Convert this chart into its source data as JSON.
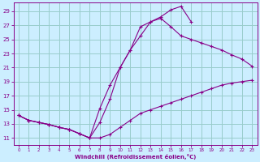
{
  "bg_color": "#cceeff",
  "grid_color": "#99cccc",
  "line_color": "#880088",
  "marker": "+",
  "xlabel": "Windchill (Refroidissement éolien,°C)",
  "ylabel_ticks": [
    11,
    13,
    15,
    17,
    19,
    21,
    23,
    25,
    27,
    29
  ],
  "xlabel_ticks": [
    0,
    1,
    2,
    3,
    4,
    5,
    6,
    7,
    8,
    9,
    10,
    11,
    12,
    13,
    14,
    15,
    16,
    17,
    18,
    19,
    20,
    21,
    22,
    23
  ],
  "xlim": [
    -0.5,
    23.5
  ],
  "ylim": [
    10.0,
    30.2
  ],
  "series1_x": [
    0,
    1,
    2,
    3,
    4,
    5,
    6,
    7,
    8,
    9,
    10,
    11,
    12,
    13,
    14,
    15,
    16,
    17,
    18,
    19,
    20,
    21,
    22,
    23
  ],
  "series1_y": [
    14.2,
    13.5,
    13.2,
    12.9,
    12.5,
    12.2,
    11.6,
    11.0,
    11.0,
    11.5,
    12.5,
    13.5,
    14.5,
    15.0,
    15.5,
    16.0,
    16.5,
    17.0,
    17.5,
    18.0,
    18.5,
    18.8,
    19.0,
    19.2
  ],
  "series2_x": [
    0,
    1,
    2,
    3,
    4,
    5,
    6,
    7,
    8,
    9,
    10,
    11,
    12,
    13,
    14,
    15,
    16,
    17,
    18,
    19,
    20,
    21,
    22,
    23
  ],
  "series2_y": [
    14.2,
    13.5,
    13.2,
    12.9,
    12.5,
    12.2,
    11.6,
    11.0,
    13.2,
    16.5,
    21.0,
    23.5,
    26.8,
    27.5,
    28.2,
    29.2,
    29.7,
    27.5,
    null,
    null,
    null,
    null,
    null,
    null
  ],
  "series3_x": [
    0,
    1,
    2,
    3,
    4,
    5,
    6,
    7,
    8,
    9,
    10,
    11,
    12,
    13,
    14,
    15,
    16,
    17,
    18,
    19,
    20,
    21,
    22,
    23
  ],
  "series3_y": [
    14.2,
    13.5,
    13.2,
    12.9,
    12.5,
    12.2,
    11.6,
    11.0,
    15.2,
    18.5,
    21.0,
    23.5,
    25.5,
    27.5,
    28.0,
    26.8,
    25.5,
    25.0,
    24.5,
    24.0,
    23.5,
    22.8,
    22.2,
    21.2
  ]
}
